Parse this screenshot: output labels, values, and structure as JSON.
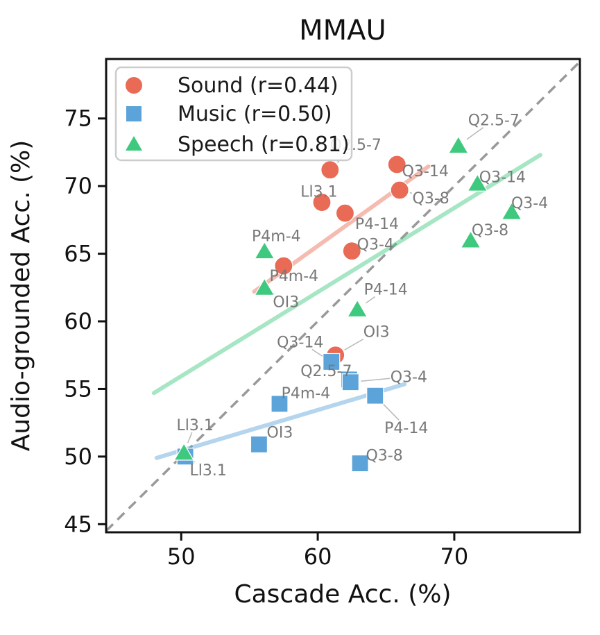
{
  "chart_data": {
    "type": "scatter",
    "title": "MMAU",
    "xlabel": "Cascade Acc. (%)",
    "ylabel": "Audio-grounded Acc. (%)",
    "xlim": [
      44.5,
      79.2
    ],
    "ylim": [
      44.4,
      79.4
    ],
    "x_ticks": [
      50,
      60,
      70
    ],
    "y_ticks": [
      45,
      50,
      55,
      60,
      65,
      70,
      75
    ],
    "grid": false,
    "legend_position": "upper left",
    "identity_line": {
      "style": "dashed",
      "color": "#999999",
      "x1": 44.5,
      "y1": 44.5,
      "x2": 79.2,
      "y2": 79.2
    },
    "annotation_color": "#787878",
    "leader_color": "#b8b8b8",
    "series": [
      {
        "name": "Sound",
        "r": 0.44,
        "legend": "Sound (r=0.44)",
        "marker": "circle",
        "color": "#e96a55",
        "trend": {
          "x1": 55.35,
          "y1": 62.2,
          "x2": 68.1,
          "y2": 71.45
        },
        "points": [
          {
            "label": "Q2.5-7",
            "x": 60.9,
            "y": 71.2,
            "label_dx": 37,
            "label_dy": -37,
            "leader": true
          },
          {
            "label": "Q3-14",
            "x": 65.8,
            "y": 71.6,
            "label_dx": 41,
            "label_dy": 9,
            "leader": true
          },
          {
            "label": "Q3-8",
            "x": 66.0,
            "y": 69.7,
            "label_dx": 45,
            "label_dy": 11,
            "leader": true
          },
          {
            "label": "Ll3.1",
            "x": 60.3,
            "y": 68.8,
            "label_dx": -4,
            "label_dy": -16,
            "leader": true
          },
          {
            "label": "P4-14",
            "x": 62.0,
            "y": 68.0,
            "label_dx": 46,
            "label_dy": 15,
            "leader": true
          },
          {
            "label": "Q3-4",
            "x": 62.5,
            "y": 65.2,
            "label_dx": 34,
            "label_dy": -10,
            "leader": true
          },
          {
            "label": "P4m-4",
            "x": 57.5,
            "y": 64.1,
            "label_dx": 15,
            "label_dy": 14,
            "leader": true
          },
          {
            "label": "OI3",
            "x": 61.3,
            "y": 57.5,
            "label_dx": 59,
            "label_dy": -34,
            "leader": true
          }
        ]
      },
      {
        "name": "Music",
        "r": 0.5,
        "legend": "Music (r=0.50)",
        "marker": "square",
        "color": "#5ba3d9",
        "trend": {
          "x1": 48.2,
          "y1": 49.9,
          "x2": 66.35,
          "y2": 55.35
        },
        "points": [
          {
            "label": "Q3-14",
            "x": 61.0,
            "y": 57.0,
            "label_dx": -45,
            "label_dy": -29,
            "leader": true
          },
          {
            "label": "Q2.5-7",
            "x": 62.3,
            "y": 55.7,
            "label_dx": -33,
            "label_dy": -13,
            "leader": false
          },
          {
            "label": "Q3-4",
            "x": 62.4,
            "y": 55.5,
            "label_dx": 84,
            "label_dy": -8,
            "leader": true
          },
          {
            "label": "P4-14",
            "x": 64.2,
            "y": 54.5,
            "label_dx": 45,
            "label_dy": 46,
            "leader": true
          },
          {
            "label": "P4m-4",
            "x": 57.2,
            "y": 53.9,
            "label_dx": 38,
            "label_dy": -16,
            "leader": false
          },
          {
            "label": "OI3",
            "x": 55.7,
            "y": 50.9,
            "label_dx": 30,
            "label_dy": -18,
            "leader": false
          },
          {
            "label": "Q3-8",
            "x": 63.1,
            "y": 49.5,
            "label_dx": 35,
            "label_dy": -12,
            "leader": false
          },
          {
            "label": "Ll3.1",
            "x": 50.3,
            "y": 50.0,
            "label_dx": 33,
            "label_dy": 19,
            "leader": true
          }
        ]
      },
      {
        "name": "Speech",
        "r": 0.81,
        "legend": "Speech (r=0.81)",
        "marker": "triangle",
        "color": "#3ec97e",
        "trend": {
          "x1": 48.0,
          "y1": 54.7,
          "x2": 76.3,
          "y2": 72.3
        },
        "points": [
          {
            "label": "Q2.5-7",
            "x": 70.3,
            "y": 73.0,
            "label_dx": 51,
            "label_dy": -37,
            "leader": true
          },
          {
            "label": "Q3-14",
            "x": 71.7,
            "y": 70.2,
            "label_dx": 36,
            "label_dy": -10,
            "leader": false
          },
          {
            "label": "Q3-4",
            "x": 74.2,
            "y": 68.1,
            "label_dx": 26,
            "label_dy": -13,
            "leader": false
          },
          {
            "label": "Q3-8",
            "x": 71.2,
            "y": 66.0,
            "label_dx": 28,
            "label_dy": -15,
            "leader": false
          },
          {
            "label": "P4m-4",
            "x": 56.1,
            "y": 65.2,
            "label_dx": 17,
            "label_dy": -22,
            "leader": false
          },
          {
            "label": "OI3",
            "x": 56.1,
            "y": 62.5,
            "label_dx": 31,
            "label_dy": 20,
            "leader": true
          },
          {
            "label": "P4-14",
            "x": 62.9,
            "y": 60.9,
            "label_dx": 41,
            "label_dy": -29,
            "leader": true
          },
          {
            "label": "Ll3.1",
            "x": 50.2,
            "y": 50.3,
            "label_dx": 16,
            "label_dy": -40,
            "leader": true
          }
        ]
      }
    ]
  }
}
